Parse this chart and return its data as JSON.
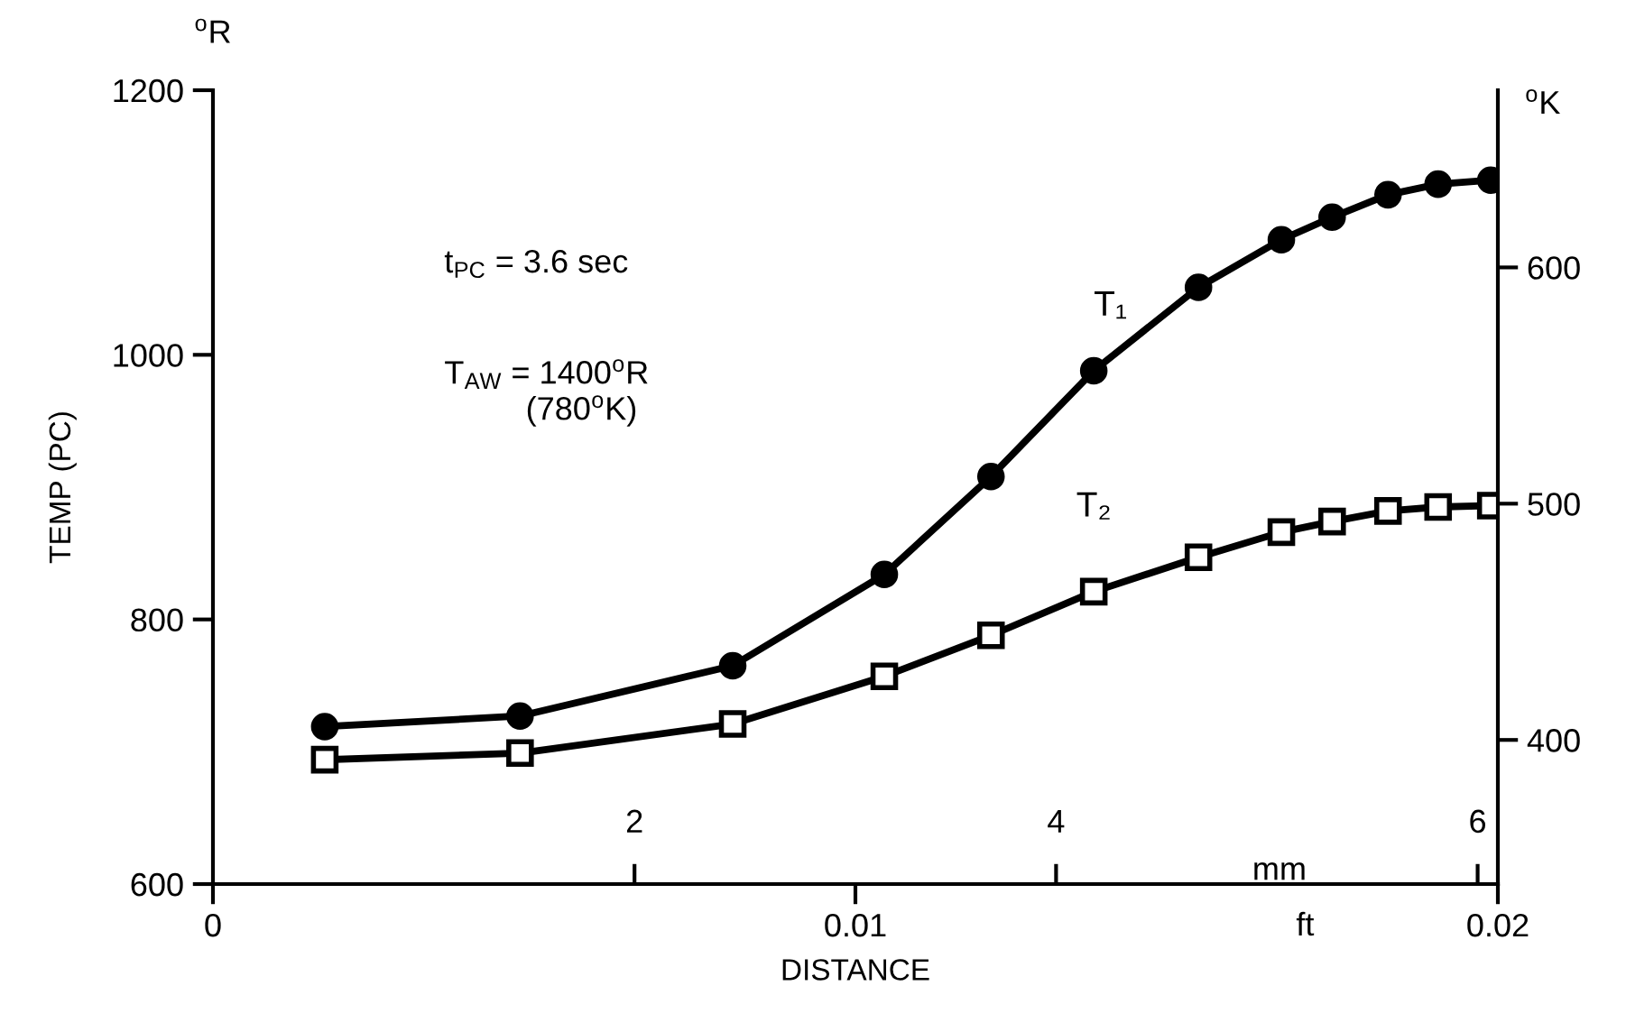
{
  "chart_data": {
    "type": "line",
    "xlabel": "DISTANCE",
    "ylabel": "TEMP (PC)",
    "y2label": "$^{o}$K",
    "x2label": "mm",
    "annotations": [
      "$^{o}$R",
      "ft",
      "t$_{PC}$ = 3.6 sec",
      "T$_{AW}$ = 1400$^{o}$R\n         (780$^{o}$K)"
    ],
    "xlim": [
      0,
      0.02
    ],
    "xticks": [
      {
        "value": 0,
        "label": "0"
      },
      0.01,
      0.02
    ],
    "ylim": [
      600,
      1200
    ],
    "yticks": [
      600,
      800,
      1000,
      1200
    ],
    "y2lim": [
      339,
      675
    ],
    "y2ticks": [
      400,
      500,
      600
    ],
    "x2lim": [
      0,
      6.096
    ],
    "x2ticks": [
      2,
      4,
      6
    ],
    "grid": false,
    "line_style": "solid",
    "series": [
      {
        "name": "T₁",
        "color": "#000000",
        "marker": "circle",
        "x": [
          0.00174,
          0.00478,
          0.00809,
          0.01045,
          0.01211,
          0.01371,
          0.01534,
          0.01663,
          0.01742,
          0.01829,
          0.01907,
          0.01989
        ],
        "values": [
          719,
          727,
          765,
          834,
          908,
          988,
          1051,
          1087,
          1104,
          1121,
          1129,
          1132
        ]
      },
      {
        "name": "T₂",
        "color": "#000000",
        "marker": "square",
        "x": [
          0.00174,
          0.00478,
          0.00809,
          0.01045,
          0.01211,
          0.01371,
          0.01534,
          0.01663,
          0.01742,
          0.01829,
          0.01907,
          0.01989
        ],
        "values": [
          694,
          699,
          721,
          757,
          788,
          821,
          847,
          866,
          874,
          882,
          885,
          886
        ]
      }
    ]
  }
}
